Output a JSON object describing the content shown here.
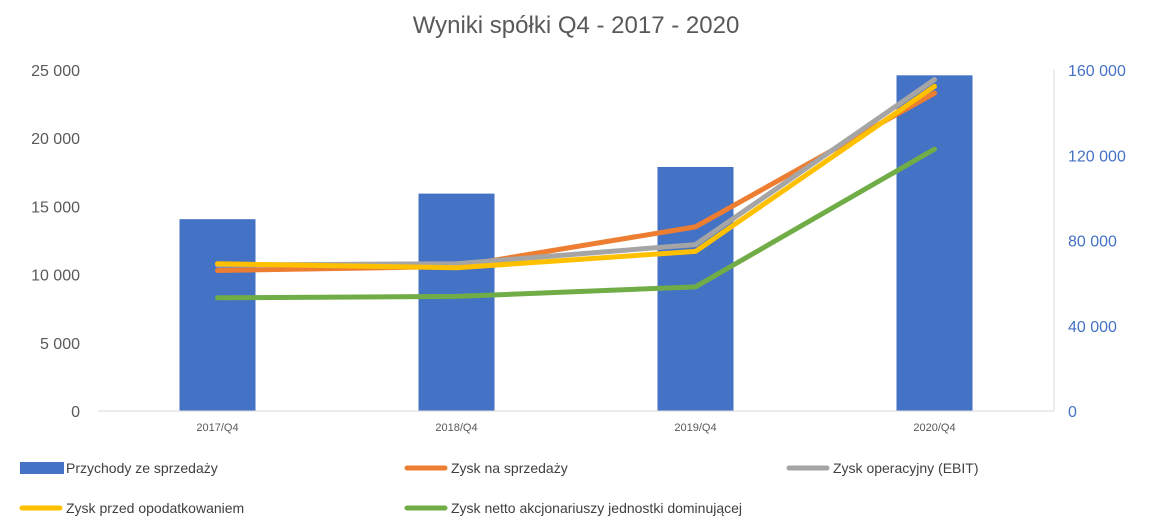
{
  "chart_data": {
    "type": "bar",
    "title": "Wyniki spółki Q4 - 2017 - 2020",
    "categories": [
      "2017/Q4",
      "2018/Q4",
      "2019/Q4",
      "2020/Q4"
    ],
    "y_left": {
      "ylim": [
        0,
        25000
      ],
      "ticks": [
        "0",
        "5 000",
        "10 000",
        "15 000",
        "20 000",
        "25 000"
      ],
      "tick_values": [
        0,
        5000,
        10000,
        15000,
        20000,
        25000
      ]
    },
    "y_right": {
      "ylim": [
        0,
        160000
      ],
      "ticks": [
        "0",
        "40 000",
        "80 000",
        "120 000",
        "160 000"
      ],
      "tick_values": [
        0,
        40000,
        80000,
        120000,
        160000
      ]
    },
    "bar_series": [
      {
        "name": "Przychody ze sprzedaży",
        "axis": "right",
        "color": "#4472C4",
        "values": [
          90000,
          102000,
          114500,
          157500
        ]
      }
    ],
    "line_series": [
      {
        "name": "Zysk na sprzedaży",
        "axis": "left",
        "color": "#ED7D31",
        "values": [
          10300,
          10600,
          13500,
          23300
        ]
      },
      {
        "name": "Zysk operacyjny (EBIT)",
        "axis": "left",
        "color": "#A5A5A5",
        "values": [
          10700,
          10800,
          12200,
          24300
        ]
      },
      {
        "name": "Zysk przed opodatkowaniem",
        "axis": "left",
        "color": "#FFC000",
        "values": [
          10800,
          10500,
          11700,
          23800
        ]
      },
      {
        "name": "Zysk netto akcjonariuszy jednostki dominującej",
        "axis": "left",
        "color": "#70AD47",
        "values": [
          8300,
          8400,
          9100,
          19200
        ]
      }
    ],
    "legend_position": "bottom",
    "grid": false
  }
}
